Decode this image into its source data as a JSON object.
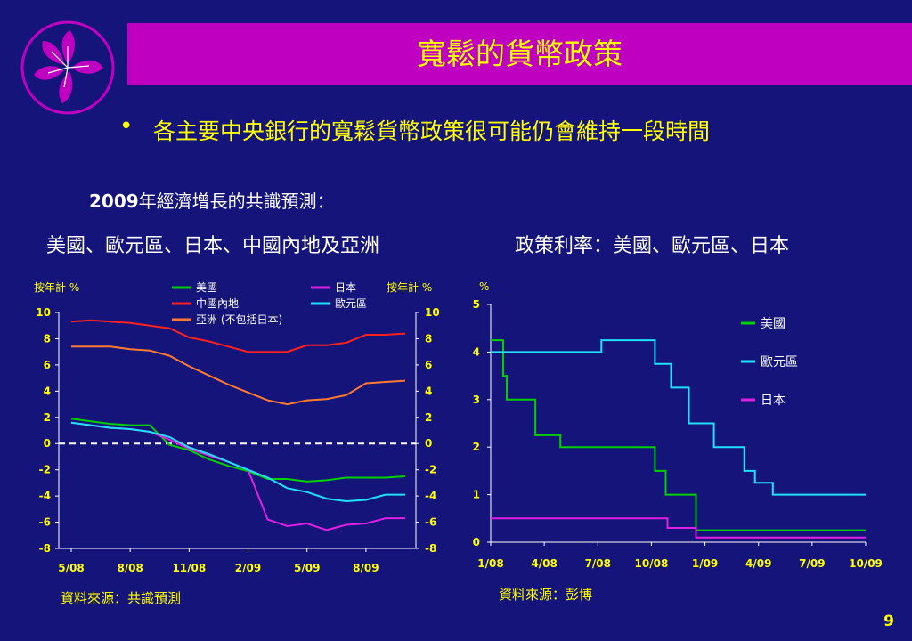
{
  "slide": {
    "title": "寬鬆的貨幣政策",
    "bullet": "各主要中央銀行的寬鬆貨幣政策很可能仍會維持一段時間",
    "subhead_year": "2009",
    "subhead_rest": "年經濟增長的共識預測：",
    "page_number": "9",
    "logo_icon": "bauhinia-flower-icon"
  },
  "colors": {
    "background": "#14147a",
    "title_bar": "#c000c0",
    "accent_text": "#ffff00",
    "us": "#00d000",
    "china": "#ff2020",
    "asia": "#ff7a30",
    "japan": "#e020e0",
    "euro": "#20e0ff"
  },
  "chart_data": [
    {
      "type": "line",
      "title": "美國、歐元區、日本、中國內地及亞洲",
      "ylabel_left": "按年計 %",
      "ylabel_right": "按年計 %",
      "ylim": [
        -8,
        10
      ],
      "yticks": [
        10,
        8,
        6,
        4,
        2,
        0,
        -2,
        -4,
        -6,
        -8
      ],
      "x": [
        "5/08",
        "6/08",
        "7/08",
        "8/08",
        "9/08",
        "10/08",
        "11/08",
        "12/08",
        "1/09",
        "2/09",
        "3/09",
        "4/09",
        "5/09",
        "6/09",
        "7/09",
        "8/09",
        "9/09",
        "10/09"
      ],
      "xticks": [
        "5/08",
        "8/08",
        "11/08",
        "2/09",
        "5/09",
        "8/09"
      ],
      "zero_line": true,
      "legend_position": "top",
      "source": "資料來源：共識預測",
      "series": [
        {
          "name": "美國",
          "color_key": "us",
          "values": [
            1.9,
            1.7,
            1.5,
            1.4,
            1.4,
            -0.1,
            -0.5,
            -1.2,
            -1.7,
            -2.1,
            -2.7,
            -2.7,
            -2.9,
            -2.8,
            -2.6,
            -2.6,
            -2.6,
            -2.5
          ]
        },
        {
          "name": "中國內地",
          "color_key": "china",
          "values": [
            9.3,
            9.4,
            9.3,
            9.2,
            9.0,
            8.8,
            8.1,
            7.8,
            7.4,
            7.0,
            7.0,
            7.0,
            7.5,
            7.5,
            7.7,
            8.3,
            8.3,
            8.4
          ]
        },
        {
          "name": "亞洲 (不包括日本)",
          "color_key": "asia",
          "values": [
            7.4,
            7.4,
            7.4,
            7.2,
            7.1,
            6.7,
            5.9,
            5.2,
            4.5,
            3.9,
            3.3,
            3.0,
            3.3,
            3.4,
            3.7,
            4.6,
            4.7,
            4.8
          ]
        },
        {
          "name": "日本",
          "color_key": "japan",
          "values": [
            1.6,
            1.4,
            1.2,
            1.1,
            0.9,
            0.3,
            -0.4,
            -0.9,
            -1.4,
            -2.0,
            -5.8,
            -6.3,
            -6.1,
            -6.6,
            -6.2,
            -6.1,
            -5.7,
            -5.7
          ]
        },
        {
          "name": "歐元區",
          "color_key": "euro",
          "values": [
            1.6,
            1.4,
            1.2,
            1.1,
            0.9,
            0.5,
            -0.3,
            -0.8,
            -1.4,
            -2.0,
            -2.6,
            -3.4,
            -3.7,
            -4.2,
            -4.4,
            -4.3,
            -3.9,
            -3.9
          ]
        }
      ]
    },
    {
      "type": "line",
      "title": "政策利率：美國、歐元區、日本",
      "ylabel": "%",
      "ylim": [
        0,
        5
      ],
      "yticks": [
        5,
        4,
        3,
        2,
        1,
        0
      ],
      "xlim_months": [
        0,
        21
      ],
      "xticks": [
        "1/08",
        "4/08",
        "7/08",
        "10/08",
        "1/09",
        "4/09",
        "7/09",
        "10/09"
      ],
      "legend_position": "right",
      "source": "資料來源：彭博",
      "series": [
        {
          "name": "美國",
          "color_key": "us",
          "step": [
            [
              0,
              4.25
            ],
            [
              0.7,
              3.5
            ],
            [
              0.9,
              3.0
            ],
            [
              2.5,
              2.25
            ],
            [
              3.9,
              2.0
            ],
            [
              9.2,
              1.5
            ],
            [
              9.8,
              1.0
            ],
            [
              11.5,
              0.25
            ],
            [
              21,
              0.25
            ]
          ]
        },
        {
          "name": "歐元區",
          "color_key": "euro",
          "step": [
            [
              0,
              4.0
            ],
            [
              6.2,
              4.25
            ],
            [
              9.2,
              3.75
            ],
            [
              10.1,
              3.25
            ],
            [
              11.1,
              2.5
            ],
            [
              12.5,
              2.0
            ],
            [
              14.2,
              1.5
            ],
            [
              14.8,
              1.25
            ],
            [
              15.8,
              1.0
            ],
            [
              21,
              1.0
            ]
          ]
        },
        {
          "name": "日本",
          "color_key": "japan",
          "step": [
            [
              0,
              0.5
            ],
            [
              9.9,
              0.3
            ],
            [
              11.5,
              0.1
            ],
            [
              21,
              0.1
            ]
          ]
        }
      ]
    }
  ]
}
